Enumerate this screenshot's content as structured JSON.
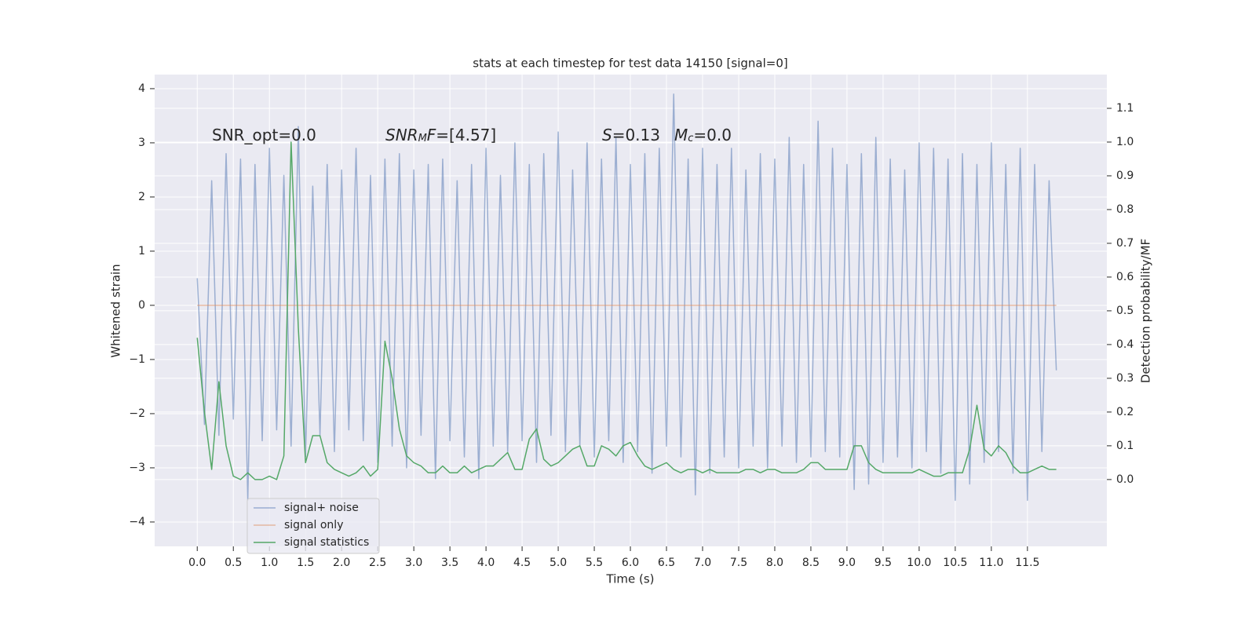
{
  "chart_data": {
    "type": "line",
    "title": "stats at each timestep for test data 14150 [signal=0]",
    "xlabel": "Time (s)",
    "ylabel": "Whitened strain",
    "y2label": "Detection probability/MF",
    "annotations": [
      [
        {
          "text": "SNR_opt=0.0",
          "style": "normal"
        }
      ],
      [
        {
          "text": "SNR",
          "style": "italic"
        },
        {
          "text": "M",
          "style": "italic-sub"
        },
        {
          "text": "F",
          "style": "italic"
        },
        {
          "text": "=[4.57]",
          "style": "normal"
        }
      ],
      [
        {
          "text": "S",
          "style": "italic"
        },
        {
          "text": "=0.13",
          "style": "normal"
        }
      ],
      [
        {
          "text": "M",
          "style": "italic"
        },
        {
          "text": "c",
          "style": "italic-sub"
        },
        {
          "text": "=0.0",
          "style": "normal"
        }
      ]
    ],
    "grid": true,
    "background": "#eaeaf2",
    "legend_loc": "lower left",
    "xlim": [
      -0.59,
      12.6
    ],
    "ylim": [
      -4.45,
      4.26
    ],
    "y2lim": [
      -0.198,
      1.2
    ],
    "xticks": [
      {
        "value": 0,
        "label": "0.0"
      },
      {
        "value": 0.5,
        "label": "0.5"
      },
      {
        "value": 1,
        "label": "1.0"
      },
      {
        "value": 1.5,
        "label": "1.5"
      },
      {
        "value": 2,
        "label": "2.0"
      },
      {
        "value": 2.5,
        "label": "2.5"
      },
      {
        "value": 3,
        "label": "3.0"
      },
      {
        "value": 3.5,
        "label": "3.5"
      },
      {
        "value": 4,
        "label": "4.0"
      },
      {
        "value": 4.5,
        "label": "4.5"
      },
      {
        "value": 5,
        "label": "5.0"
      },
      {
        "value": 5.5,
        "label": "5.5"
      },
      {
        "value": 6,
        "label": "6.0"
      },
      {
        "value": 6.5,
        "label": "6.5"
      },
      {
        "value": 7,
        "label": "7.0"
      },
      {
        "value": 7.5,
        "label": "7.5"
      },
      {
        "value": 8,
        "label": "8.0"
      },
      {
        "value": 8.5,
        "label": "8.5"
      },
      {
        "value": 9,
        "label": "9.0"
      },
      {
        "value": 9.5,
        "label": "9.5"
      },
      {
        "value": 10,
        "label": "10.0"
      },
      {
        "value": 10.5,
        "label": "10.5"
      },
      {
        "value": 11,
        "label": "11.0"
      },
      {
        "value": 11.5,
        "label": "11.5"
      }
    ],
    "yticks": [
      {
        "value": -4,
        "label": "−4"
      },
      {
        "value": -3,
        "label": "−3"
      },
      {
        "value": -2,
        "label": "−2"
      },
      {
        "value": -1,
        "label": "−1"
      },
      0,
      1,
      2,
      3,
      4
    ],
    "y2ticks": [
      {
        "value": 0,
        "label": "0.0"
      },
      0.1,
      0.2,
      0.3,
      0.4,
      0.5,
      0.6,
      0.7,
      0.8,
      0.9,
      {
        "value": 1,
        "label": "1.0"
      },
      1.1
    ],
    "x": [
      0,
      0.1,
      0.2,
      0.3,
      0.4,
      0.5,
      0.6,
      0.7,
      0.8,
      0.9,
      1,
      1.1,
      1.2,
      1.3,
      1.4,
      1.5,
      1.6,
      1.7,
      1.8,
      1.9,
      2,
      2.1,
      2.2,
      2.3,
      2.4,
      2.5,
      2.6,
      2.7,
      2.8,
      2.9,
      3,
      3.1,
      3.2,
      3.3,
      3.4,
      3.5,
      3.6,
      3.7,
      3.8,
      3.9,
      4,
      4.1,
      4.2,
      4.3,
      4.4,
      4.5,
      4.6,
      4.7,
      4.8,
      4.9,
      5,
      5.1,
      5.2,
      5.3,
      5.4,
      5.5,
      5.6,
      5.7,
      5.8,
      5.9,
      6,
      6.1,
      6.2,
      6.3,
      6.4,
      6.5,
      6.6,
      6.7,
      6.8,
      6.9,
      7,
      7.1,
      7.2,
      7.3,
      7.4,
      7.5,
      7.6,
      7.7,
      7.8,
      7.9,
      8,
      8.1,
      8.2,
      8.3,
      8.4,
      8.5,
      8.6,
      8.7,
      8.8,
      8.9,
      9,
      9.1,
      9.2,
      9.3,
      9.4,
      9.5,
      9.6,
      9.7,
      9.8,
      9.9,
      10,
      10.1,
      10.2,
      10.3,
      10.4,
      10.5,
      10.6,
      10.7,
      10.8,
      10.9,
      11,
      11.1,
      11.2,
      11.3,
      11.4,
      11.5,
      11.6,
      11.7,
      11.8,
      11.9
    ],
    "series": [
      {
        "name": "signal+ noise",
        "color": "#4c72b0",
        "opacity": 0.5,
        "axis": "y",
        "values": [
          0.5,
          -2.2,
          2.3,
          -2.4,
          2.8,
          -2.1,
          2.7,
          -3.6,
          2.6,
          -2.5,
          2.9,
          -2.3,
          2.4,
          -2.6,
          3.3,
          -2.8,
          2.2,
          -2.4,
          2.6,
          -2.7,
          2.5,
          -2.3,
          2.9,
          -2.5,
          2.4,
          -2.9,
          2.7,
          -2.6,
          2.8,
          -3.0,
          2.5,
          -2.4,
          2.6,
          -3.2,
          2.7,
          -2.5,
          2.3,
          -2.8,
          2.6,
          -3.2,
          2.9,
          -2.6,
          2.4,
          -2.7,
          3.0,
          -2.5,
          2.6,
          -2.9,
          2.8,
          -2.4,
          3.2,
          -2.7,
          2.5,
          -2.6,
          3.0,
          -2.8,
          2.7,
          -2.5,
          3.1,
          -2.9,
          2.6,
          -2.7,
          2.8,
          -3.1,
          2.9,
          -2.6,
          3.9,
          -2.8,
          2.7,
          -3.5,
          2.9,
          -3.1,
          2.6,
          -2.8,
          2.9,
          -3.0,
          2.5,
          -2.6,
          2.8,
          -3.0,
          2.7,
          -2.6,
          3.1,
          -2.9,
          2.6,
          -2.8,
          3.4,
          -2.7,
          2.9,
          -2.8,
          2.6,
          -3.4,
          2.8,
          -3.3,
          3.1,
          -2.9,
          2.7,
          -2.8,
          2.5,
          -3.0,
          3.0,
          -2.7,
          2.9,
          -3.1,
          2.7,
          -3.6,
          2.8,
          -3.3,
          2.6,
          -2.9,
          3.0,
          -2.7,
          2.6,
          -3.1,
          2.9,
          -3.6,
          2.6,
          -2.7,
          2.3,
          -1.2
        ]
      },
      {
        "name": "signal only",
        "color": "#dd8452",
        "opacity": 0.5,
        "axis": "y",
        "values": [
          0,
          0,
          0,
          0,
          0,
          0,
          0,
          0,
          0,
          0,
          0,
          0,
          0,
          0,
          0,
          0,
          0,
          0,
          0,
          0,
          0,
          0,
          0,
          0,
          0,
          0,
          0,
          0,
          0,
          0,
          0,
          0,
          0,
          0,
          0,
          0,
          0,
          0,
          0,
          0,
          0,
          0,
          0,
          0,
          0,
          0,
          0,
          0,
          0,
          0,
          0,
          0,
          0,
          0,
          0,
          0,
          0,
          0,
          0,
          0,
          0,
          0,
          0,
          0,
          0,
          0,
          0,
          0,
          0,
          0,
          0,
          0,
          0,
          0,
          0,
          0,
          0,
          0,
          0,
          0,
          0,
          0,
          0,
          0,
          0,
          0,
          0,
          0,
          0,
          0,
          0,
          0,
          0,
          0,
          0,
          0,
          0,
          0,
          0,
          0,
          0,
          0,
          0,
          0,
          0,
          0,
          0,
          0,
          0,
          0,
          0,
          0,
          0,
          0,
          0,
          0,
          0,
          0,
          0,
          0
        ]
      },
      {
        "name": "signal statistics",
        "color": "#55a868",
        "opacity": 1,
        "axis": "y2",
        "values": [
          0.42,
          0.2,
          0.03,
          0.29,
          0.1,
          0.01,
          0,
          0.02,
          0,
          0,
          0.01,
          0,
          0.07,
          1.0,
          0.45,
          0.05,
          0.13,
          0.13,
          0.05,
          0.03,
          0.02,
          0.01,
          0.02,
          0.04,
          0.01,
          0.03,
          0.41,
          0.3,
          0.15,
          0.07,
          0.05,
          0.04,
          0.02,
          0.02,
          0.04,
          0.02,
          0.02,
          0.04,
          0.02,
          0.03,
          0.04,
          0.04,
          0.06,
          0.08,
          0.03,
          0.03,
          0.12,
          0.15,
          0.06,
          0.04,
          0.05,
          0.07,
          0.09,
          0.1,
          0.04,
          0.04,
          0.1,
          0.09,
          0.07,
          0.1,
          0.11,
          0.07,
          0.04,
          0.03,
          0.04,
          0.05,
          0.03,
          0.02,
          0.03,
          0.03,
          0.02,
          0.03,
          0.02,
          0.02,
          0.02,
          0.02,
          0.03,
          0.03,
          0.02,
          0.03,
          0.03,
          0.02,
          0.02,
          0.02,
          0.03,
          0.05,
          0.05,
          0.03,
          0.03,
          0.03,
          0.03,
          0.1,
          0.1,
          0.05,
          0.03,
          0.02,
          0.02,
          0.02,
          0.02,
          0.02,
          0.03,
          0.02,
          0.01,
          0.01,
          0.02,
          0.02,
          0.02,
          0.09,
          0.22,
          0.09,
          0.07,
          0.1,
          0.08,
          0.04,
          0.02,
          0.02,
          0.03,
          0.04,
          0.03,
          0.03
        ]
      }
    ]
  }
}
